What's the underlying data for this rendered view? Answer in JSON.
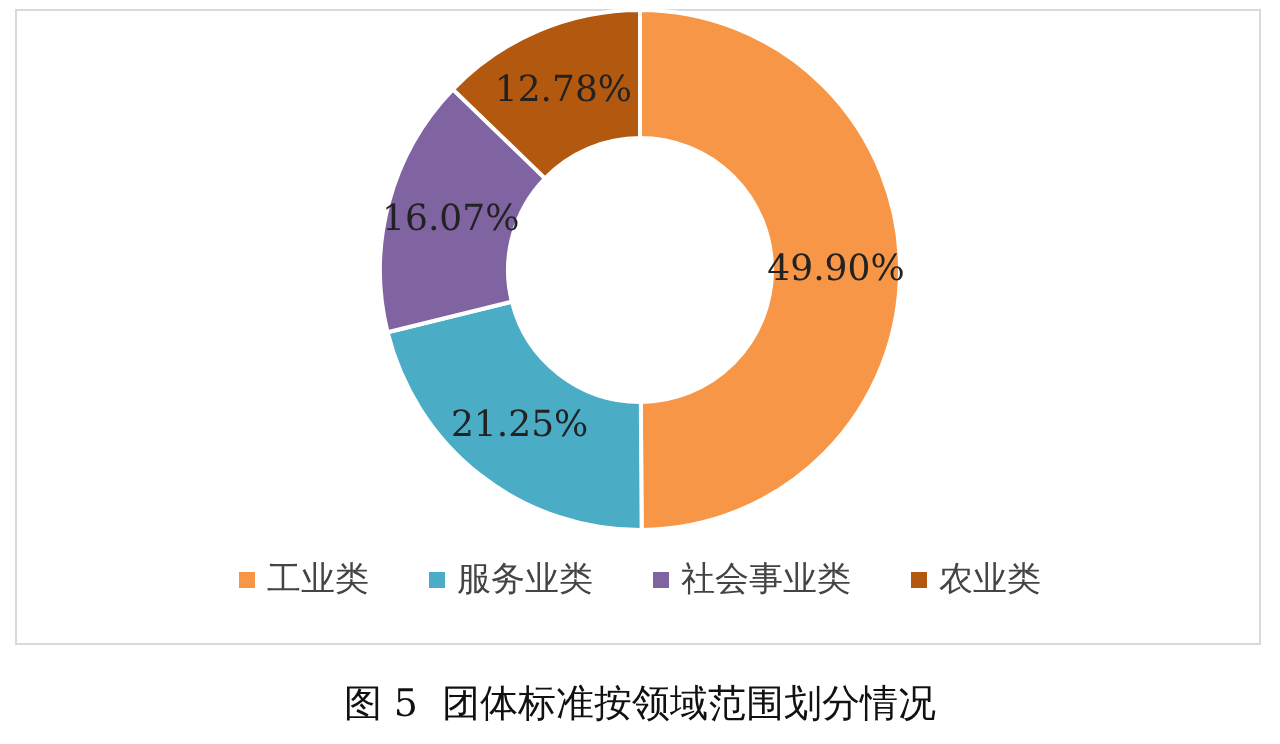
{
  "chart_data": {
    "type": "donut",
    "title": "图 5  团体标准按领域范围划分情况",
    "categories": [
      "工业类",
      "服务业类",
      "社会事业类",
      "农业类"
    ],
    "values": [
      49.9,
      21.25,
      16.07,
      12.78
    ],
    "value_labels": [
      "49.90%",
      "21.25%",
      "16.07%",
      "12.78%"
    ],
    "colors": [
      "#f79646",
      "#4bacc6",
      "#8064a2",
      "#b3590f"
    ],
    "legend": "bottom"
  }
}
